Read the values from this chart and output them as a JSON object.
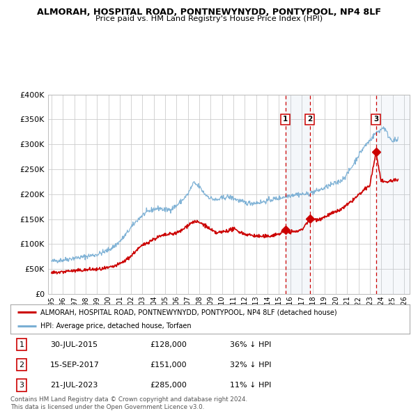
{
  "title": "ALMORAH, HOSPITAL ROAD, PONTNEWYNYDD, PONTYPOOL, NP4 8LF",
  "subtitle": "Price paid vs. HM Land Registry's House Price Index (HPI)",
  "ylim": [
    0,
    400000
  ],
  "xlim_start": 1994.7,
  "xlim_end": 2026.5,
  "background_color": "#ffffff",
  "grid_color": "#cccccc",
  "sale_color": "#cc0000",
  "hpi_color": "#7aafd4",
  "transactions": [
    {
      "label": "1",
      "date_year": 2015.58,
      "price": 128000,
      "pct": "36% ↓ HPI",
      "date_str": "30-JUL-2015"
    },
    {
      "label": "2",
      "date_year": 2017.71,
      "price": 151000,
      "pct": "32% ↓ HPI",
      "date_str": "15-SEP-2017"
    },
    {
      "label": "3",
      "date_year": 2023.55,
      "price": 285000,
      "pct": "11% ↓ HPI",
      "date_str": "21-JUL-2023"
    }
  ],
  "legend_sale_label": "ALMORAH, HOSPITAL ROAD, PONTNEWYNYDD, PONTYPOOL, NP4 8LF (detached house)",
  "legend_hpi_label": "HPI: Average price, detached house, Torfaen",
  "footnote": "Contains HM Land Registry data © Crown copyright and database right 2024.\nThis data is licensed under the Open Government Licence v3.0.",
  "ytick_labels": [
    "£0",
    "£50K",
    "£100K",
    "£150K",
    "£200K",
    "£250K",
    "£300K",
    "£350K",
    "£400K"
  ],
  "ytick_values": [
    0,
    50000,
    100000,
    150000,
    200000,
    250000,
    300000,
    350000,
    400000
  ],
  "hpi_anchors": [
    [
      1995.0,
      65000
    ],
    [
      1995.5,
      67000
    ],
    [
      1996.0,
      68000
    ],
    [
      1996.5,
      70000
    ],
    [
      1997.0,
      72000
    ],
    [
      1997.5,
      73000
    ],
    [
      1998.0,
      75000
    ],
    [
      1998.5,
      77000
    ],
    [
      1999.0,
      79000
    ],
    [
      1999.5,
      83000
    ],
    [
      2000.0,
      88000
    ],
    [
      2000.5,
      95000
    ],
    [
      2001.0,
      105000
    ],
    [
      2001.5,
      118000
    ],
    [
      2002.0,
      133000
    ],
    [
      2002.5,
      147000
    ],
    [
      2003.0,
      158000
    ],
    [
      2003.5,
      165000
    ],
    [
      2004.0,
      170000
    ],
    [
      2004.5,
      172000
    ],
    [
      2005.0,
      168000
    ],
    [
      2005.5,
      170000
    ],
    [
      2006.0,
      177000
    ],
    [
      2006.5,
      188000
    ],
    [
      2007.0,
      200000
    ],
    [
      2007.5,
      223000
    ],
    [
      2008.0,
      215000
    ],
    [
      2008.5,
      200000
    ],
    [
      2009.0,
      192000
    ],
    [
      2009.5,
      188000
    ],
    [
      2010.0,
      192000
    ],
    [
      2010.5,
      195000
    ],
    [
      2011.0,
      192000
    ],
    [
      2011.5,
      187000
    ],
    [
      2012.0,
      183000
    ],
    [
      2012.5,
      182000
    ],
    [
      2013.0,
      183000
    ],
    [
      2013.5,
      184000
    ],
    [
      2014.0,
      187000
    ],
    [
      2014.5,
      190000
    ],
    [
      2015.0,
      192000
    ],
    [
      2015.5,
      195000
    ],
    [
      2016.0,
      198000
    ],
    [
      2016.5,
      200000
    ],
    [
      2017.0,
      200000
    ],
    [
      2017.5,
      200000
    ],
    [
      2018.0,
      204000
    ],
    [
      2018.5,
      208000
    ],
    [
      2019.0,
      212000
    ],
    [
      2019.5,
      218000
    ],
    [
      2020.0,
      222000
    ],
    [
      2020.5,
      228000
    ],
    [
      2021.0,
      240000
    ],
    [
      2021.5,
      258000
    ],
    [
      2022.0,
      278000
    ],
    [
      2022.5,
      295000
    ],
    [
      2023.0,
      308000
    ],
    [
      2023.5,
      322000
    ],
    [
      2024.0,
      330000
    ],
    [
      2024.2,
      335000
    ],
    [
      2024.4,
      328000
    ],
    [
      2024.6,
      318000
    ],
    [
      2024.8,
      312000
    ],
    [
      2025.0,
      308000
    ]
  ],
  "sale_anchors": [
    [
      1995.0,
      42000
    ],
    [
      1995.5,
      43000
    ],
    [
      1996.0,
      44000
    ],
    [
      1996.5,
      46000
    ],
    [
      1997.0,
      46000
    ],
    [
      1997.5,
      47000
    ],
    [
      1998.0,
      48000
    ],
    [
      1998.5,
      49000
    ],
    [
      1999.0,
      49000
    ],
    [
      1999.5,
      50000
    ],
    [
      2000.0,
      52000
    ],
    [
      2000.5,
      55000
    ],
    [
      2001.0,
      60000
    ],
    [
      2001.5,
      67000
    ],
    [
      2002.0,
      76000
    ],
    [
      2002.5,
      88000
    ],
    [
      2003.0,
      97000
    ],
    [
      2003.5,
      104000
    ],
    [
      2004.0,
      110000
    ],
    [
      2004.5,
      115000
    ],
    [
      2005.0,
      118000
    ],
    [
      2005.5,
      120000
    ],
    [
      2006.0,
      122000
    ],
    [
      2006.5,
      128000
    ],
    [
      2007.0,
      138000
    ],
    [
      2007.5,
      145000
    ],
    [
      2008.0,
      143000
    ],
    [
      2008.5,
      138000
    ],
    [
      2009.0,
      128000
    ],
    [
      2009.5,
      122000
    ],
    [
      2010.0,
      124000
    ],
    [
      2010.5,
      127000
    ],
    [
      2011.0,
      130000
    ],
    [
      2011.5,
      125000
    ],
    [
      2012.0,
      120000
    ],
    [
      2012.5,
      118000
    ],
    [
      2013.0,
      116000
    ],
    [
      2013.5,
      115000
    ],
    [
      2014.0,
      115000
    ],
    [
      2014.5,
      118000
    ],
    [
      2015.0,
      120000
    ],
    [
      2015.58,
      128000
    ],
    [
      2016.0,
      124000
    ],
    [
      2016.5,
      125000
    ],
    [
      2017.0,
      128000
    ],
    [
      2017.71,
      151000
    ],
    [
      2018.0,
      148000
    ],
    [
      2018.5,
      150000
    ],
    [
      2019.0,
      154000
    ],
    [
      2019.5,
      160000
    ],
    [
      2020.0,
      164000
    ],
    [
      2020.5,
      170000
    ],
    [
      2021.0,
      178000
    ],
    [
      2021.5,
      188000
    ],
    [
      2022.0,
      198000
    ],
    [
      2022.5,
      208000
    ],
    [
      2023.0,
      218000
    ],
    [
      2023.55,
      285000
    ],
    [
      2023.75,
      255000
    ],
    [
      2024.0,
      228000
    ],
    [
      2024.3,
      222000
    ],
    [
      2024.6,
      225000
    ],
    [
      2025.0,
      228000
    ]
  ]
}
